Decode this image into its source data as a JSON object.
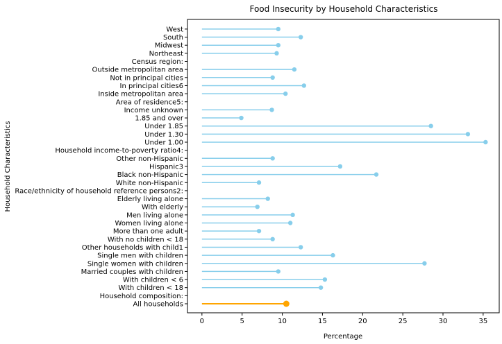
{
  "chart_data": {
    "type": "lollipop",
    "title": "Food Insecurity by Household Characteristics",
    "xlabel": "Percentage",
    "ylabel": "Household Characteristics",
    "xlim": [
      -1.8,
      37.0
    ],
    "xticks": [
      0,
      5,
      10,
      15,
      20,
      25,
      30,
      35
    ],
    "grid": false,
    "colors": {
      "default": "#87ceeb",
      "highlight": "#ffa500"
    },
    "highlight": "All households",
    "categories": [
      "All households",
      "Household composition:",
      "With children < 18",
      "With children < 6",
      "Married couples with children",
      "Single women with children",
      "Single men with children",
      "Other households with child1",
      "With no children < 18",
      "More than one adult",
      "Women living alone",
      "Men living alone",
      "With elderly",
      "Elderly living alone",
      "Race/ethnicity of household reference persons2:",
      "White non-Hispanic",
      "Black non-Hispanic",
      "Hispanic3",
      "Other non-Hispanic",
      "Household income-to-poverty ratio4:",
      "Under 1.00",
      "Under 1.30",
      "Under 1.85",
      "1.85 and over",
      "Income unknown",
      "Area of residence5:",
      "Inside metropolitan area",
      "In principal cities6",
      "Not in principal cities",
      "Outside metropolitan area",
      "Census region:",
      "Northeast",
      "Midwest",
      "South",
      "West"
    ],
    "values": [
      10.5,
      null,
      14.8,
      15.3,
      9.5,
      27.7,
      16.3,
      12.3,
      8.8,
      7.1,
      11.0,
      11.3,
      6.9,
      8.2,
      null,
      7.1,
      21.7,
      17.2,
      8.8,
      null,
      35.3,
      33.1,
      28.5,
      4.9,
      8.7,
      null,
      10.4,
      12.7,
      8.8,
      11.5,
      null,
      9.3,
      9.5,
      12.3,
      9.5
    ]
  }
}
